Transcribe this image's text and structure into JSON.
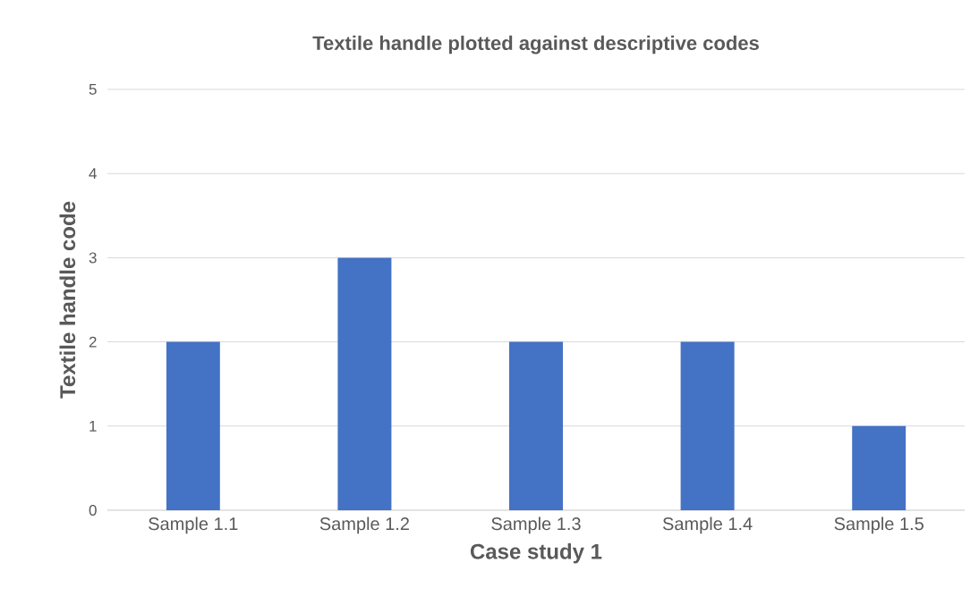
{
  "chart_data": {
    "type": "bar",
    "title": "Textile handle plotted against descriptive codes",
    "xlabel": "Case study 1",
    "ylabel": "Textile handle code",
    "categories": [
      "Sample 1.1",
      "Sample 1.2",
      "Sample 1.3",
      "Sample 1.4",
      "Sample 1.5"
    ],
    "values": [
      2,
      3,
      2,
      2,
      1
    ],
    "color": "#4472c4",
    "ylim": [
      0,
      5
    ],
    "yticks": [
      0,
      1,
      2,
      3,
      4,
      5
    ],
    "grid": "y"
  }
}
